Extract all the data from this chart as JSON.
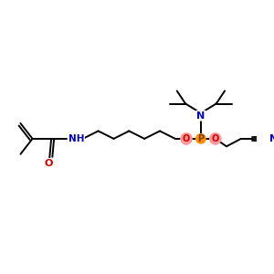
{
  "bg_color": "#ffffff",
  "atom_colors": {
    "C": "#000000",
    "N": "#0000cd",
    "O": "#cc0000",
    "P": "#ff8c00"
  },
  "bond_color": "#000000",
  "bond_width": 1.4,
  "figsize": [
    3.0,
    3.0
  ],
  "dpi": 100,
  "xlim": [
    0,
    300
  ],
  "ylim": [
    0,
    300
  ]
}
